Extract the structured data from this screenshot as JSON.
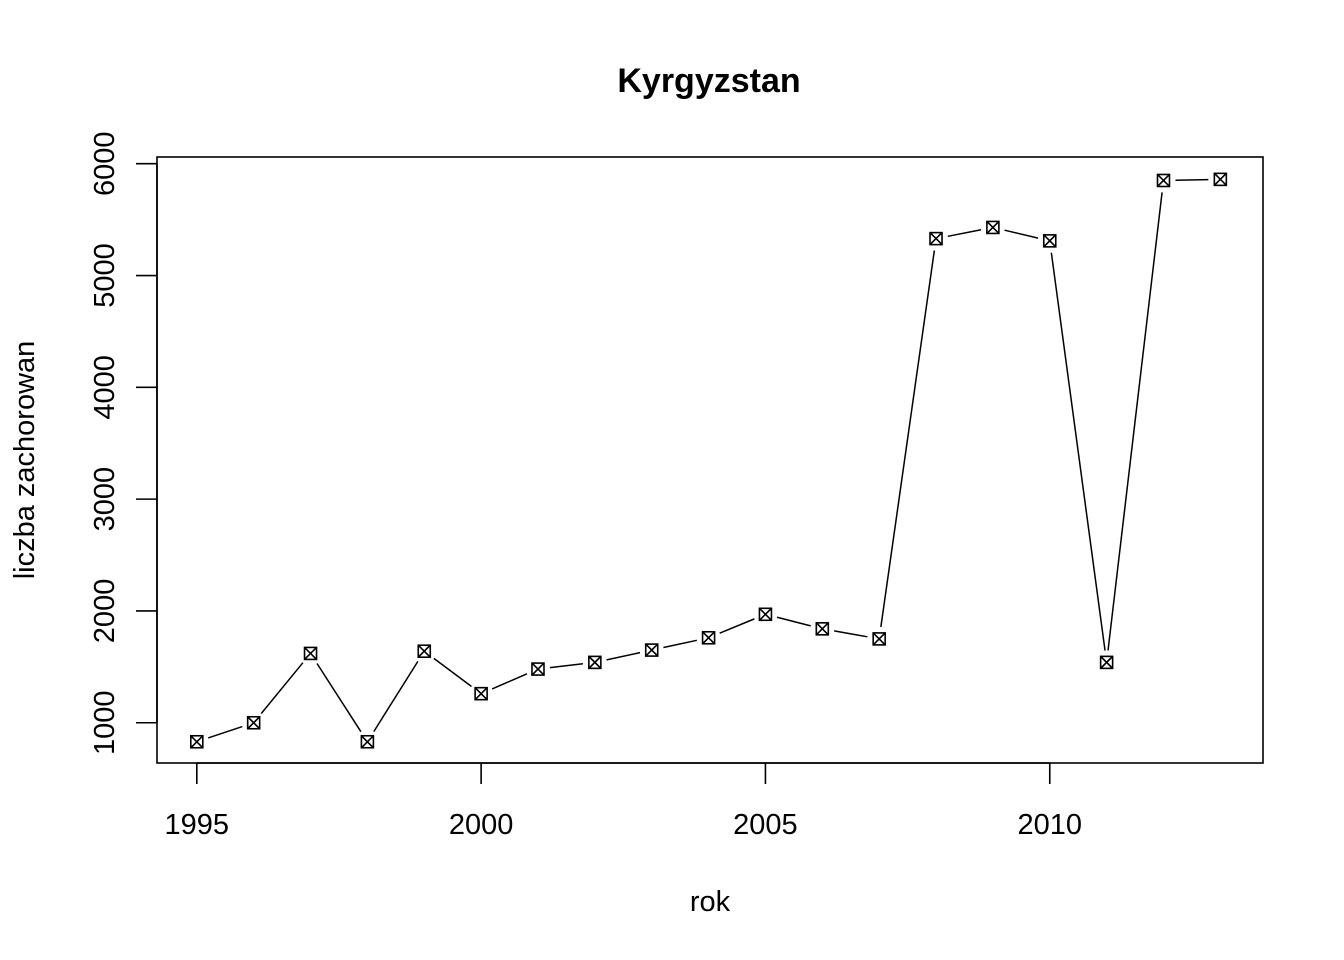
{
  "chart_data": {
    "type": "line",
    "title": "Kyrgyzstan",
    "xlabel": "rok",
    "ylabel": "liczba zachorowan",
    "x": [
      1995,
      1996,
      1997,
      1998,
      1999,
      2000,
      2001,
      2002,
      2003,
      2004,
      2005,
      2006,
      2007,
      2008,
      2009,
      2010,
      2011,
      2012,
      2013
    ],
    "series": [
      {
        "values": [
          830,
          1000,
          1620,
          830,
          1640,
          1260,
          1480,
          1540,
          1650,
          1760,
          1970,
          1840,
          1750,
          5330,
          5430,
          5310,
          1540,
          5850,
          5860
        ]
      }
    ],
    "xticks": [
      1995,
      2000,
      2005,
      2010
    ],
    "yticks": [
      1000,
      2000,
      3000,
      4000,
      5000,
      6000
    ],
    "xlim": [
      1994.3,
      2013.75
    ],
    "ylim": [
      640,
      6060
    ],
    "line_style": "b",
    "marker": "boxed-x",
    "grid": false,
    "legend": "none"
  }
}
